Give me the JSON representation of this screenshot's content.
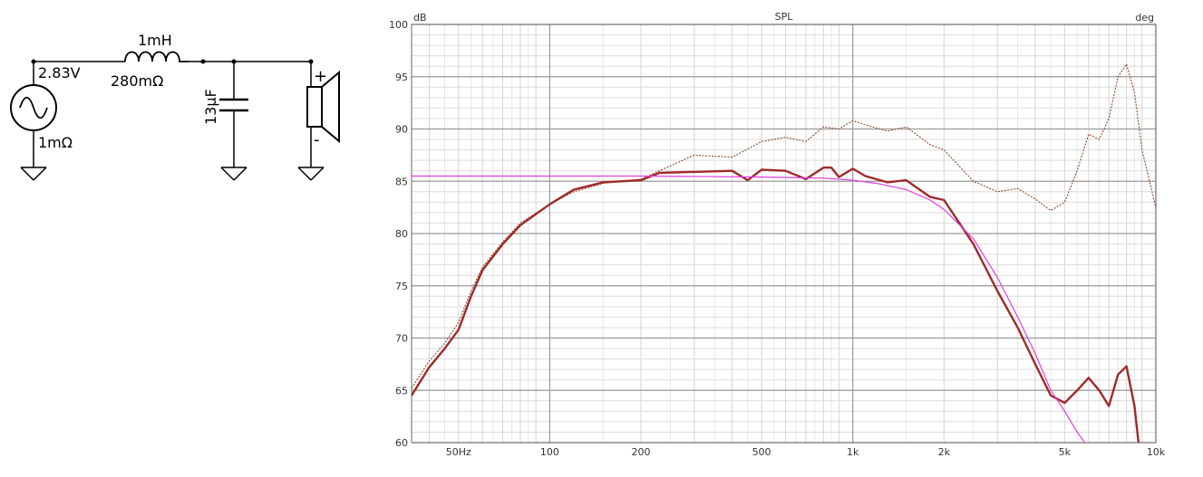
{
  "schematic": {
    "source_voltage": "2.83V",
    "source_resistance": "1mΩ",
    "inductor_value": "1mH",
    "inductor_resistance": "280mΩ",
    "capacitor_value": "13µF",
    "speaker_plus": "+",
    "speaker_minus": "-",
    "icons": [
      "ac-source-icon",
      "inductor-icon",
      "capacitor-icon",
      "speaker-icon",
      "ground-icon"
    ]
  },
  "chart_data": {
    "type": "line",
    "title": "SPL",
    "ylabel": "dB",
    "y2label": "deg",
    "xscale": "log",
    "xlim": [
      35,
      10000
    ],
    "ylim": [
      60,
      100
    ],
    "grid": true,
    "xticks": [
      {
        "value": 50,
        "label": "50Hz"
      },
      {
        "value": 100,
        "label": "100"
      },
      {
        "value": 200,
        "label": "200"
      },
      {
        "value": 500,
        "label": "500"
      },
      {
        "value": 1000,
        "label": "1k"
      },
      {
        "value": 2000,
        "label": "2k"
      },
      {
        "value": 5000,
        "label": "5k"
      },
      {
        "value": 10000,
        "label": "10k"
      }
    ],
    "yticks": [
      {
        "value": 100,
        "label": "100"
      },
      {
        "value": 95,
        "label": "95"
      },
      {
        "value": 90,
        "label": "90"
      },
      {
        "value": 85,
        "label": "85"
      },
      {
        "value": 80,
        "label": "80"
      },
      {
        "value": 75,
        "label": "75"
      },
      {
        "value": 70,
        "label": "70"
      },
      {
        "value": 65,
        "label": "65"
      },
      {
        "value": 60,
        "label": "60"
      }
    ],
    "series": [
      {
        "color": "#8b4a2b",
        "style": "dotted",
        "x": [
          35,
          40,
          45,
          50,
          55,
          60,
          70,
          80,
          100,
          120,
          150,
          200,
          230,
          300,
          400,
          500,
          600,
          700,
          800,
          900,
          1000,
          1100,
          1300,
          1500,
          1800,
          2000,
          2500,
          3000,
          3500,
          4000,
          4500,
          5000,
          5500,
          6000,
          6500,
          7000,
          7500,
          8000,
          8500,
          9000,
          10000
        ],
        "y": [
          65.2,
          67.8,
          69.5,
          71.5,
          74.5,
          76.8,
          79.2,
          81.0,
          82.8,
          84.0,
          84.8,
          85.2,
          86.0,
          87.5,
          87.3,
          88.8,
          89.2,
          88.8,
          90.2,
          90.0,
          90.8,
          90.4,
          89.8,
          90.2,
          88.5,
          88.0,
          85.0,
          84.0,
          84.3,
          83.3,
          82.2,
          83.0,
          86.0,
          89.5,
          89.0,
          91.0,
          95.0,
          96.2,
          93.5,
          88.0,
          82.5
        ]
      },
      {
        "color": "#9e2a2b",
        "style": "solid",
        "x": [
          35,
          40,
          45,
          50,
          55,
          60,
          70,
          80,
          100,
          120,
          150,
          200,
          230,
          300,
          400,
          450,
          500,
          600,
          700,
          800,
          850,
          900,
          1000,
          1100,
          1300,
          1500,
          1800,
          2000,
          2500,
          3000,
          3500,
          4000,
          4500,
          5000,
          5500,
          6000,
          6500,
          7000,
          7500,
          8000,
          8500,
          9000
        ],
        "y": [
          64.5,
          67.2,
          69.0,
          70.8,
          74.0,
          76.5,
          79.0,
          80.8,
          82.8,
          84.2,
          84.9,
          85.1,
          85.8,
          85.9,
          86.0,
          85.1,
          86.1,
          86.0,
          85.2,
          86.3,
          86.3,
          85.4,
          86.2,
          85.5,
          84.9,
          85.1,
          83.5,
          83.2,
          79.0,
          74.5,
          71.0,
          67.5,
          64.5,
          63.8,
          65.0,
          66.2,
          65.0,
          63.5,
          66.5,
          67.3,
          63.5,
          57.0
        ]
      },
      {
        "color": "#e040e0",
        "style": "solid",
        "x": [
          35,
          100,
          200,
          500,
          800,
          1000,
          1200,
          1500,
          1800,
          2000,
          2500,
          3000,
          3500,
          4000,
          4500,
          5000,
          5500,
          6000
        ],
        "y": [
          85.5,
          85.5,
          85.5,
          85.4,
          85.3,
          85.1,
          84.8,
          84.2,
          83.2,
          82.3,
          79.5,
          75.8,
          72.0,
          68.5,
          65.0,
          63.0,
          61.0,
          59.5
        ]
      }
    ]
  }
}
